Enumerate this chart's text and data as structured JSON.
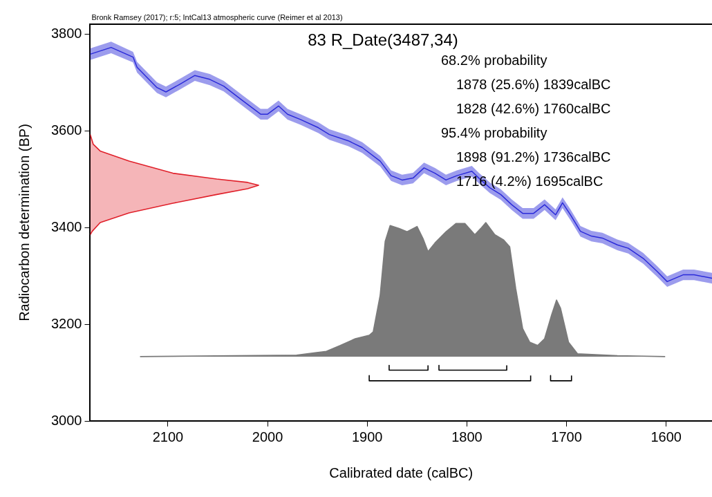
{
  "chart_data": {
    "type": "line",
    "title": "83 R_Date(3487,34)",
    "subtitle": "Bronk Ramsey (2017); r:5; IntCal13 atmospheric curve (Reimer et al 2013)",
    "xlabel": "Calibrated date (calBC)",
    "ylabel": "Radiocarbon determination (BP)",
    "annotations": [
      "68.2% probability",
      "1878 (25.6%) 1839calBC",
      "1828 (42.6%) 1760calBC",
      "95.4% probability",
      "1898 (91.2%) 1736calBC",
      "1716 (4.2%) 1695calBC"
    ],
    "xlim": [
      2178,
      1554
    ],
    "xticks": [
      2100,
      2000,
      1900,
      1800,
      1700,
      1600
    ],
    "ylim": [
      3000,
      3820
    ],
    "yticks": [
      3000,
      3200,
      3400,
      3600,
      3800
    ],
    "grid": false,
    "legend": false,
    "marker": "none",
    "x": [
      2178,
      2157,
      2135,
      2131,
      2111,
      2102,
      2088,
      2073,
      2058,
      2044,
      2025,
      2007,
      2000,
      1989,
      1980,
      1967,
      1949,
      1938,
      1919,
      1905,
      1887,
      1876,
      1865,
      1854,
      1843,
      1832,
      1821,
      1810,
      1795,
      1788,
      1777,
      1766,
      1755,
      1744,
      1733,
      1722,
      1711,
      1707,
      1704,
      1696,
      1686,
      1675,
      1664,
      1649,
      1638,
      1623,
      1609,
      1599,
      1583,
      1572,
      1554
    ],
    "series": [
      {
        "color": "#2b2bd9",
        "values": [
          3758,
          3772,
          3752,
          3731,
          3689,
          3680,
          3696,
          3714,
          3706,
          3692,
          3662,
          3634,
          3634,
          3651,
          3634,
          3623,
          3606,
          3592,
          3579,
          3565,
          3537,
          3507,
          3498,
          3502,
          3523,
          3512,
          3498,
          3507,
          3516,
          3502,
          3482,
          3468,
          3447,
          3429,
          3429,
          3447,
          3426,
          3440,
          3451,
          3426,
          3392,
          3382,
          3378,
          3364,
          3357,
          3336,
          3309,
          3288,
          3302,
          3302,
          3295
        ],
        "lower": [
          3746,
          3760,
          3741,
          3720,
          3678,
          3669,
          3685,
          3703,
          3694,
          3681,
          3651,
          3623,
          3623,
          3640,
          3623,
          3612,
          3595,
          3581,
          3568,
          3554,
          3526,
          3496,
          3487,
          3491,
          3512,
          3501,
          3487,
          3496,
          3505,
          3491,
          3471,
          3457,
          3436,
          3418,
          3418,
          3436,
          3415,
          3429,
          3440,
          3415,
          3381,
          3371,
          3367,
          3353,
          3346,
          3325,
          3298,
          3277,
          3291,
          3291,
          3284
        ],
        "upper": [
          3770,
          3784,
          3763,
          3742,
          3700,
          3691,
          3707,
          3725,
          3717,
          3703,
          3673,
          3645,
          3645,
          3662,
          3645,
          3634,
          3617,
          3603,
          3590,
          3576,
          3548,
          3518,
          3509,
          3513,
          3534,
          3523,
          3509,
          3518,
          3527,
          3513,
          3493,
          3479,
          3458,
          3440,
          3440,
          3458,
          3437,
          3451,
          3462,
          3437,
          3403,
          3393,
          3389,
          3375,
          3368,
          3347,
          3320,
          3299,
          3313,
          3313,
          3306
        ]
      },
      {
        "type": "area",
        "color": "#e0202a",
        "x": [
          2178,
          2175,
          2168,
          2139,
          2095,
          2051,
          2020,
          2009,
          2020,
          2051,
          2095,
          2139,
          2168,
          2176,
          2178
        ],
        "values": [
          3592,
          3572,
          3558,
          3537,
          3512,
          3500,
          3493,
          3487,
          3480,
          3468,
          3450,
          3430,
          3410,
          3392,
          3385
        ]
      },
      {
        "type": "area",
        "color": "#7a7a7a",
        "x": [
          2128,
          1971,
          1941,
          1927,
          1912,
          1898,
          1894,
          1887,
          1882,
          1877,
          1868,
          1860,
          1850,
          1844,
          1839,
          1832,
          1821,
          1811,
          1802,
          1792,
          1786,
          1781,
          1772,
          1763,
          1757,
          1751,
          1744,
          1737,
          1729,
          1722,
          1715,
          1710,
          1706,
          1698,
          1689,
          1649,
          1601
        ],
        "values": [
          3133,
          3136,
          3144,
          3156,
          3170,
          3177,
          3184,
          3260,
          3371,
          3404,
          3398,
          3391,
          3402,
          3377,
          3350,
          3368,
          3391,
          3408,
          3408,
          3385,
          3398,
          3410,
          3385,
          3374,
          3360,
          3274,
          3191,
          3163,
          3156,
          3170,
          3219,
          3250,
          3233,
          3163,
          3139,
          3135,
          3133
        ]
      },
      {
        "type": "line",
        "color": "#000000",
        "x": [
          1878,
          1878,
          1839,
          1839,
          null,
          1828,
          1828,
          1760,
          1760,
          null,
          1898,
          1898,
          1736,
          1736,
          null,
          1716,
          1716,
          1695,
          1695
        ],
        "values": [
          3115,
          3105,
          3105,
          3115,
          null,
          3115,
          3105,
          3105,
          3115,
          null,
          3094,
          3083,
          3083,
          3094,
          null,
          3094,
          3083,
          3083,
          3094
        ]
      }
    ]
  }
}
